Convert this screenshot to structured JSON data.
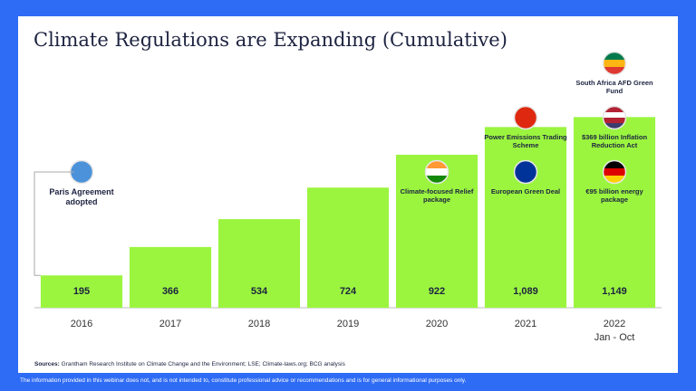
{
  "chart_data": {
    "type": "bar",
    "title": "Climate Regulations are Expanding (Cumulative)",
    "categories": [
      "2016",
      "2017",
      "2018",
      "2019",
      "2020",
      "2021",
      "2022"
    ],
    "category_subtitle": [
      "Jan - Oct"
    ],
    "values": [
      195,
      366,
      534,
      724,
      922,
      1089,
      1149
    ],
    "value_labels": [
      "195",
      "366",
      "534",
      "724",
      "922",
      "1,089",
      "1,149"
    ],
    "color": "#9bf53f",
    "ylim": [
      0,
      1200
    ],
    "annotations": [
      [
        "Paris Agreement adopted"
      ],
      [],
      [],
      [],
      [
        "Climate-focused Relief package"
      ],
      [
        "European Green Deal",
        "Power Emissions Trading Scheme"
      ],
      [
        "€95 billion energy package",
        "$369 billion Inflation Reduction Act",
        "South Africa AFD Green Fund"
      ]
    ],
    "source_label": "Sources:",
    "source": "Grantham Research Institute on Climate Change and the Environment; LSE; Climate-laws.org; BCG analysis",
    "disclaimer": "The information provided in this webinar does not, and is not intended to, constitute professional advice or recommendations and is for general informational purposes only."
  }
}
